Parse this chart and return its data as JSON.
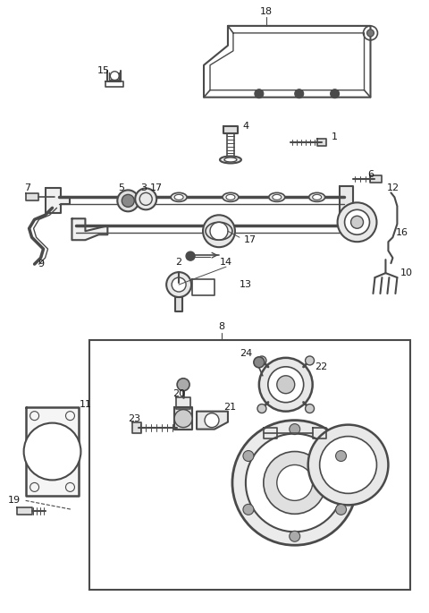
{
  "bg_color": "#ffffff",
  "line_color": "#4a4a4a",
  "text_color": "#1a1a1a",
  "fig_width": 4.8,
  "fig_height": 6.85,
  "dpi": 100
}
